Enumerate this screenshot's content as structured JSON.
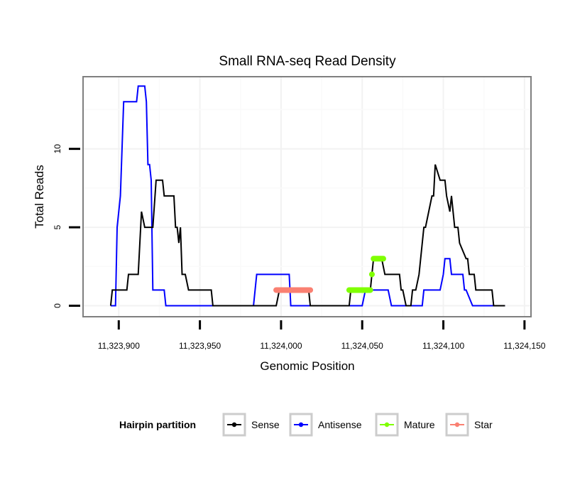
{
  "chart_data": {
    "type": "line",
    "title": "Small RNA-seq Read Density",
    "xlabel": "Genomic Position",
    "ylabel": "Total Reads",
    "xlim": [
      11323878,
      11324154
    ],
    "ylim": [
      -0.7,
      14.6
    ],
    "grid": true,
    "x_ticks": [
      11323900,
      11323950,
      11324000,
      11324050,
      11324100,
      11324150
    ],
    "x_tick_labels": [
      "11,323,900",
      "11,323,950",
      "11,324,000",
      "11,324,050",
      "11,324,100",
      "11,324,150"
    ],
    "y_ticks": [
      0,
      5,
      10
    ],
    "y_tick_labels": [
      "0",
      "5",
      "10"
    ],
    "legend": {
      "title": "Hairpin partition",
      "position": "bottom",
      "entries": [
        {
          "name": "Sense",
          "color": "#000000"
        },
        {
          "name": "Antisense",
          "color": "#0000ff"
        },
        {
          "name": "Mature",
          "color": "#7fff00"
        },
        {
          "name": "Star",
          "color": "#fa8072"
        }
      ]
    },
    "series": [
      {
        "name": "Sense",
        "color": "#000000",
        "kind": "line",
        "x": [
          11323895,
          11323896,
          11323905,
          11323906,
          11323912,
          11323914,
          11323916,
          11323921,
          11323923,
          11323927,
          11323928,
          11323934,
          11323935,
          11323936,
          11323937,
          11323938,
          11323939,
          11323941,
          11323943,
          11323957,
          11323958,
          11323997,
          11323999,
          11324017,
          11324018,
          11324042,
          11324043,
          11324055,
          11324056,
          11324057,
          11324059,
          11324062,
          11324064,
          11324073,
          11324074,
          11324075,
          11324077,
          11324078,
          11324080,
          11324081,
          11324083,
          11324085,
          11324088,
          11324089,
          11324093,
          11324094,
          11324095,
          11324098,
          11324101,
          11324102,
          11324104,
          11324105,
          11324107,
          11324108,
          11324109,
          11324110,
          11324114,
          11324115,
          11324116,
          11324117,
          11324119,
          11324120,
          11324122,
          11324123,
          11324130,
          11324131,
          11324138
        ],
        "y": [
          0,
          1,
          1,
          2,
          2,
          6,
          5,
          5,
          8,
          8,
          7,
          7,
          5,
          5,
          4,
          5,
          2,
          2,
          1,
          1,
          0,
          0,
          1,
          1,
          0,
          0,
          1,
          1,
          2,
          3,
          3,
          3,
          2,
          2,
          1,
          1,
          0,
          0,
          0,
          1,
          1,
          2,
          5,
          5,
          7,
          7,
          9,
          8,
          8,
          7,
          6,
          7,
          5,
          5,
          5,
          4,
          3,
          3,
          2,
          2,
          2,
          1,
          1,
          1,
          1,
          0,
          0
        ]
      },
      {
        "name": "Antisense",
        "color": "#0000ff",
        "kind": "line",
        "x": [
          11323895,
          11323898,
          11323899,
          11323901,
          11323903,
          11323911,
          11323912,
          11323916,
          11323917,
          11323918,
          11323919,
          11323920,
          11323921,
          11323928,
          11323929,
          11323983,
          11323985,
          11324005,
          11324006,
          11324043,
          11324050,
          11324052,
          11324066,
          11324068,
          11324087,
          11324088,
          11324098,
          11324100,
          11324101,
          11324104,
          11324105,
          11324112,
          11324113,
          11324114,
          11324118,
          11324138
        ],
        "y": [
          0,
          0,
          5,
          7,
          13,
          13,
          14,
          14,
          13,
          9,
          9,
          8,
          1,
          1,
          0,
          0,
          2,
          2,
          0,
          0,
          0,
          1,
          1,
          0,
          0,
          1,
          1,
          2,
          3,
          3,
          2,
          2,
          1,
          1,
          0,
          0
        ]
      },
      {
        "name": "Mature",
        "color": "#7fff00",
        "kind": "segments",
        "segments": [
          [
            11324042,
            11324055,
            1
          ],
          [
            11324057,
            11324063,
            3
          ]
        ],
        "points": [
          [
            11324056,
            2
          ]
        ]
      },
      {
        "name": "Star",
        "color": "#fa8072",
        "kind": "segments",
        "segments": [
          [
            11323997,
            11324018,
            1
          ]
        ],
        "points": []
      }
    ]
  }
}
